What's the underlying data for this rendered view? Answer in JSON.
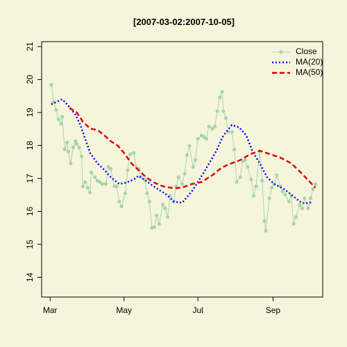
{
  "chart_data": {
    "type": "line",
    "title": "[2007-03-02:2007-10-05]",
    "xlim": [
      -7,
      225
    ],
    "xticks": [
      {
        "value": 0,
        "label": "Mar"
      },
      {
        "value": 61,
        "label": "May"
      },
      {
        "value": 122,
        "label": "Jul"
      },
      {
        "value": 184,
        "label": "Sep"
      }
    ],
    "ylim": [
      13.4,
      21.15
    ],
    "yticks": [
      14,
      15,
      16,
      17,
      18,
      19,
      20,
      21
    ],
    "legend": "top-right",
    "series": [
      {
        "name": "Close",
        "color": "#a8d4a8",
        "linestyle": "solid",
        "markers": true,
        "x": [
          1,
          3,
          5,
          7,
          9,
          10,
          12,
          14,
          15,
          17,
          19,
          21,
          22,
          24,
          26,
          27,
          29,
          31,
          33,
          34,
          37,
          39,
          41,
          43,
          46,
          48,
          50,
          53,
          55,
          57,
          59,
          62,
          64,
          66,
          69,
          71,
          73,
          75,
          78,
          80,
          82,
          84,
          86,
          88,
          90,
          93,
          95,
          97,
          99,
          102,
          104,
          106,
          109,
          111,
          113,
          115,
          118,
          120,
          122,
          125,
          127,
          129,
          131,
          134,
          136,
          138,
          140,
          142,
          143,
          145,
          147,
          150,
          152,
          154,
          157,
          159,
          161,
          163,
          166,
          168,
          170,
          173,
          175,
          177,
          178,
          181,
          183,
          185,
          187,
          190,
          192,
          194,
          197,
          199,
          201,
          203,
          206,
          208,
          210,
          213,
          215,
          217,
          219
        ],
        "values": [
          19.84,
          19.31,
          19.08,
          18.79,
          18.66,
          18.87,
          17.88,
          18.09,
          17.82,
          17.46,
          17.94,
          18.13,
          18.05,
          17.94,
          17.67,
          16.76,
          16.89,
          16.72,
          16.57,
          17.18,
          17.04,
          16.93,
          16.89,
          16.83,
          16.83,
          17.35,
          17.29,
          16.76,
          16.76,
          16.3,
          16.15,
          16.55,
          17.25,
          17.73,
          17.77,
          17.35,
          17.29,
          17.04,
          16.97,
          16.55,
          16.3,
          15.5,
          15.52,
          15.88,
          15.62,
          16.21,
          16.09,
          15.83,
          16.47,
          16.3,
          16.76,
          17.04,
          16.83,
          17.14,
          17.71,
          17.99,
          17.35,
          17.56,
          18.2,
          18.3,
          18.26,
          18.2,
          18.58,
          18.51,
          18.58,
          19.04,
          19.46,
          19.63,
          19.04,
          18.83,
          18.41,
          18.41,
          17.88,
          16.89,
          17.04,
          17.52,
          17.56,
          17.35,
          16.97,
          16.47,
          16.76,
          17.82,
          16.93,
          15.71,
          15.41,
          16.4,
          16.72,
          16.83,
          17.1,
          16.76,
          16.61,
          16.51,
          16.3,
          16.47,
          15.62,
          15.83,
          16.19,
          16.09,
          16.4,
          16.09,
          16.4,
          16.68,
          16.83
        ]
      },
      {
        "name": "MA(20)",
        "color": "#0000ff",
        "linestyle": "dotted",
        "markers": false,
        "x": [
          1,
          10,
          14,
          21,
          25,
          29,
          33,
          39,
          45,
          50,
          57,
          63,
          69,
          73,
          79,
          87,
          96,
          102,
          109,
          117,
          122,
          128,
          137,
          143,
          150,
          156,
          162,
          167,
          173,
          179,
          185,
          193,
          199,
          206,
          210,
          217
        ],
        "values": [
          19.25,
          19.4,
          19.25,
          18.93,
          18.62,
          18.2,
          17.77,
          17.46,
          17.25,
          17.04,
          16.83,
          16.87,
          16.97,
          17.08,
          16.93,
          16.72,
          16.51,
          16.3,
          16.26,
          16.61,
          16.89,
          17.25,
          17.82,
          18.3,
          18.62,
          18.55,
          18.3,
          17.82,
          17.46,
          17.04,
          16.83,
          16.68,
          16.51,
          16.3,
          16.24,
          16.28
        ]
      },
      {
        "name": "MA(50)",
        "color": "#e00000",
        "linestyle": "dashed",
        "markers": false,
        "x": [
          16,
          22,
          27,
          33,
          39,
          45,
          50,
          56,
          62,
          67,
          73,
          79,
          85,
          93,
          102,
          109,
          117,
          125,
          134,
          141,
          147,
          156,
          165,
          173,
          182,
          190,
          199,
          208,
          216,
          219
        ],
        "values": [
          19.14,
          19.0,
          18.72,
          18.51,
          18.47,
          18.3,
          18.13,
          17.99,
          17.73,
          17.46,
          17.25,
          17.04,
          16.89,
          16.76,
          16.7,
          16.72,
          16.83,
          16.89,
          17.1,
          17.31,
          17.42,
          17.54,
          17.73,
          17.84,
          17.73,
          17.63,
          17.46,
          17.14,
          16.83,
          16.72
        ]
      }
    ]
  }
}
